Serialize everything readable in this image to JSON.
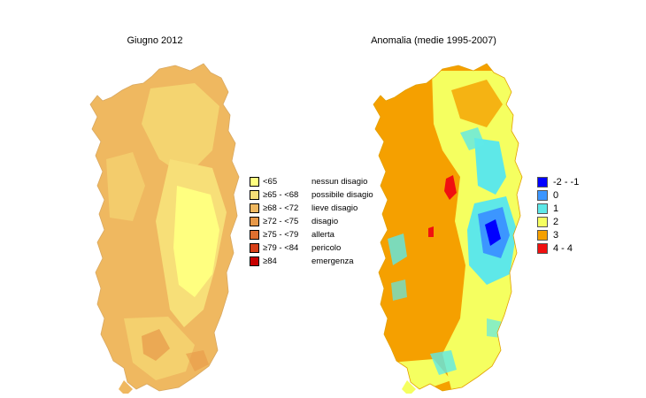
{
  "maps": {
    "left": {
      "title": "Giugno 2012",
      "legend": [
        {
          "range": "<65",
          "label": "nessun disagio",
          "color": "#ffff80"
        },
        {
          "range": "≥65 - <68",
          "label": "possibile disagio",
          "color": "#f7df78"
        },
        {
          "range": "≥68 - <72",
          "label": "lieve disagio",
          "color": "#efb860"
        },
        {
          "range": "≥72 - <75",
          "label": "disagio",
          "color": "#e79848"
        },
        {
          "range": "≥75 - <79",
          "label": "allerta",
          "color": "#df7030"
        },
        {
          "range": "≥79 - <84",
          "label": "pericolo",
          "color": "#d84018"
        },
        {
          "range": "≥84",
          "label": "emergenza",
          "color": "#c80000"
        }
      ]
    },
    "right": {
      "title": "Anomalia (medie 1995-2007)",
      "legend": [
        {
          "range": "-2 - -1",
          "color": "#0000ff"
        },
        {
          "range": "0",
          "color": "#3c96ff"
        },
        {
          "range": "1",
          "color": "#5ee8e8"
        },
        {
          "range": "2",
          "color": "#f5ff60"
        },
        {
          "range": "3",
          "color": "#f5a000"
        },
        {
          "range": "4 - 4",
          "color": "#f01010"
        }
      ]
    }
  }
}
